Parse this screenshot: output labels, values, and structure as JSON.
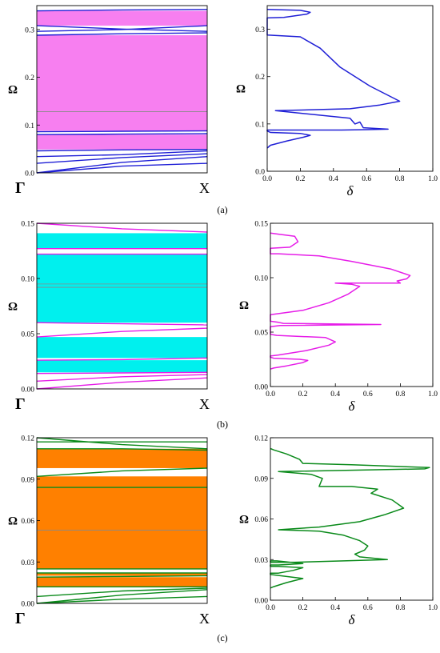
{
  "panels": [
    {
      "label": "(a)",
      "color": "#1f1fd6",
      "band_fill": "#f77ff0",
      "band_structure": {
        "type": "line",
        "ylabel": "Ω",
        "xticks": [
          "Γ",
          "X"
        ],
        "ylim": [
          0,
          0.35
        ],
        "yticks": [
          0.0,
          0.1,
          0.2,
          0.3
        ],
        "ytick_labels": [
          "0.0",
          "0.1",
          "0.2",
          "0.3"
        ],
        "gaps": [
          [
            0.049,
            0.08
          ],
          [
            0.088,
            0.288
          ],
          [
            0.308,
            0.339
          ]
        ],
        "flat_lines": [
          0.128
        ],
        "bands": [
          {
            "x": [
              0,
              0.5,
              1
            ],
            "y": [
              0.0,
              0.014,
              0.02
            ]
          },
          {
            "x": [
              0,
              0.5,
              1
            ],
            "y": [
              0.0,
              0.022,
              0.034
            ]
          },
          {
            "x": [
              0,
              0.5,
              1
            ],
            "y": [
              0.02,
              0.032,
              0.04
            ]
          },
          {
            "x": [
              0,
              0.5,
              1
            ],
            "y": [
              0.034,
              0.038,
              0.046
            ]
          },
          {
            "x": [
              0,
              0.5,
              1
            ],
            "y": [
              0.046,
              0.048,
              0.049
            ]
          },
          {
            "x": [
              0,
              0.5,
              1
            ],
            "y": [
              0.08,
              0.081,
              0.082
            ]
          },
          {
            "x": [
              0,
              0.5,
              1
            ],
            "y": [
              0.086,
              0.087,
              0.088
            ]
          },
          {
            "x": [
              0,
              0.5,
              1
            ],
            "y": [
              0.288,
              0.291,
              0.293
            ]
          },
          {
            "x": [
              0,
              0.5,
              1
            ],
            "y": [
              0.296,
              0.3,
              0.308
            ]
          },
          {
            "x": [
              0,
              0.5,
              1
            ],
            "y": [
              0.308,
              0.301,
              0.296
            ]
          },
          {
            "x": [
              0,
              0.5,
              1
            ],
            "y": [
              0.339,
              0.341,
              0.342
            ]
          }
        ]
      },
      "transmission": {
        "type": "line",
        "xlabel": "δ",
        "ylabel": "Ω",
        "xlim": [
          0,
          1.0
        ],
        "ylim": [
          0,
          0.35
        ],
        "xticks": [
          0,
          0.2,
          0.4,
          0.6,
          0.8,
          1.0
        ],
        "xtick_labels": [
          "0.0",
          "0.2",
          "0.4",
          "0.6",
          "0.8",
          "1.0"
        ],
        "yticks": [
          0.0,
          0.1,
          0.2,
          0.3
        ],
        "ytick_labels": [
          "0.0",
          "0.1",
          "0.2",
          "0.3"
        ],
        "x": [
          0.0,
          0.02,
          0.12,
          0.22,
          0.26,
          0.2,
          0.02,
          0.0,
          0.0,
          0.45,
          0.6,
          0.73,
          0.58,
          0.56,
          0.53,
          0.5,
          0.05,
          0.5,
          0.68,
          0.8,
          0.62,
          0.44,
          0.32,
          0.2,
          0.0,
          0.0,
          0.1,
          0.24,
          0.26,
          0.2,
          0.0
        ],
        "y": [
          0.049,
          0.055,
          0.064,
          0.072,
          0.076,
          0.08,
          0.082,
          0.085,
          0.087,
          0.087,
          0.088,
          0.089,
          0.092,
          0.104,
          0.1,
          0.112,
          0.128,
          0.132,
          0.14,
          0.148,
          0.18,
          0.22,
          0.26,
          0.284,
          0.288,
          0.324,
          0.325,
          0.332,
          0.336,
          0.34,
          0.342
        ]
      }
    },
    {
      "label": "(b)",
      "color": "#e61ee8",
      "band_fill": "#00f0ee",
      "band_structure": {
        "type": "line",
        "ylabel": "Ω",
        "xticks": [
          "Γ",
          "X"
        ],
        "ylim": [
          0,
          0.15
        ],
        "yticks": [
          0.0,
          0.05,
          0.1,
          0.15
        ],
        "ytick_labels": [
          "0.00",
          "0.05",
          "0.10",
          "0.15"
        ],
        "gaps": [
          [
            0.015,
            0.026
          ],
          [
            0.028,
            0.047
          ],
          [
            0.06,
            0.122
          ],
          [
            0.127,
            0.141
          ]
        ],
        "flat_lines": [
          0.092,
          0.095
        ],
        "bands": [
          {
            "x": [
              0,
              0.5,
              1
            ],
            "y": [
              0.0,
              0.006,
              0.01
            ]
          },
          {
            "x": [
              0,
              0.5,
              1
            ],
            "y": [
              0.007,
              0.011,
              0.013
            ]
          },
          {
            "x": [
              0,
              0.5,
              1
            ],
            "y": [
              0.014,
              0.0145,
              0.015
            ]
          },
          {
            "x": [
              0,
              0.5,
              1
            ],
            "y": [
              0.026,
              0.0265,
              0.028
            ]
          },
          {
            "x": [
              0,
              0.5,
              1
            ],
            "y": [
              0.047,
              0.052,
              0.055
            ]
          },
          {
            "x": [
              0,
              0.5,
              1
            ],
            "y": [
              0.06,
              0.059,
              0.058
            ]
          },
          {
            "x": [
              0,
              0.5,
              1
            ],
            "y": [
              0.122,
              0.122,
              0.122
            ]
          },
          {
            "x": [
              0,
              0.5,
              1
            ],
            "y": [
              0.127,
              0.127,
              0.127
            ]
          },
          {
            "x": [
              0,
              0.5,
              1
            ],
            "y": [
              0.15,
              0.145,
              0.142
            ]
          }
        ]
      },
      "transmission": {
        "type": "line",
        "xlabel": "δ",
        "ylabel": "Ω",
        "xlim": [
          0,
          1.0
        ],
        "ylim": [
          0,
          0.15
        ],
        "xticks": [
          0,
          0.2,
          0.4,
          0.6,
          0.8,
          1.0
        ],
        "xtick_labels": [
          "0.0",
          "0.2",
          "0.4",
          "0.6",
          "0.8",
          "1.0"
        ],
        "yticks": [
          0.0,
          0.05,
          0.1,
          0.15
        ],
        "ytick_labels": [
          "0.00",
          "0.05",
          "0.10",
          "0.15"
        ],
        "x": [
          0.0,
          0.02,
          0.1,
          0.2,
          0.23,
          0.18,
          0.02,
          0.0,
          0.0,
          0.05,
          0.22,
          0.36,
          0.4,
          0.34,
          0.04,
          0.0,
          0.0,
          0.06,
          0.68,
          0.08,
          0.05,
          0.0,
          0.0,
          0.2,
          0.36,
          0.48,
          0.55,
          0.5,
          0.4,
          0.8,
          0.78,
          0.84,
          0.86,
          0.74,
          0.5,
          0.3,
          0.05,
          0.0,
          0.0,
          0.12,
          0.17,
          0.15,
          0.05,
          0.0
        ],
        "y": [
          0.016,
          0.017,
          0.019,
          0.022,
          0.024,
          0.025,
          0.026,
          0.027,
          0.028,
          0.029,
          0.033,
          0.038,
          0.041,
          0.045,
          0.047,
          0.048,
          0.055,
          0.056,
          0.057,
          0.058,
          0.059,
          0.06,
          0.066,
          0.07,
          0.077,
          0.085,
          0.092,
          0.094,
          0.095,
          0.095,
          0.097,
          0.099,
          0.102,
          0.108,
          0.115,
          0.12,
          0.122,
          0.122,
          0.127,
          0.128,
          0.133,
          0.138,
          0.14,
          0.141
        ]
      }
    },
    {
      "label": "(c)",
      "color": "#0a8a1a",
      "band_fill": "#ff8000",
      "band_structure": {
        "type": "line",
        "ylabel": "Ω",
        "xticks": [
          "Γ",
          "X"
        ],
        "ylim": [
          0,
          0.12
        ],
        "yticks": [
          0.0,
          0.03,
          0.06,
          0.09,
          0.12
        ],
        "ytick_labels": [
          "0.00",
          "0.03",
          "0.06",
          "0.09",
          "0.12"
        ],
        "gaps": [
          [
            0.012,
            0.019
          ],
          [
            0.02,
            0.022
          ],
          [
            0.025,
            0.092
          ],
          [
            0.098,
            0.112
          ]
        ],
        "flat_lines": [
          0.053
        ],
        "bands": [
          {
            "x": [
              0,
              0.5,
              1
            ],
            "y": [
              0.0,
              0.003,
              0.005
            ]
          },
          {
            "x": [
              0,
              0.5,
              1
            ],
            "y": [
              0.0,
              0.006,
              0.01
            ]
          },
          {
            "x": [
              0,
              0.5,
              1
            ],
            "y": [
              0.005,
              0.009,
              0.011
            ]
          },
          {
            "x": [
              0,
              0.5,
              1
            ],
            "y": [
              0.012,
              0.012,
              0.012
            ]
          },
          {
            "x": [
              0,
              0.5,
              1
            ],
            "y": [
              0.019,
              0.0195,
              0.02
            ]
          },
          {
            "x": [
              0,
              0.5,
              1
            ],
            "y": [
              0.022,
              0.022,
              0.022
            ]
          },
          {
            "x": [
              0,
              0.5,
              1
            ],
            "y": [
              0.025,
              0.025,
              0.025
            ]
          },
          {
            "x": [
              0,
              0.5,
              1
            ],
            "y": [
              0.084,
              0.084,
              0.084
            ]
          },
          {
            "x": [
              0,
              0.5,
              1
            ],
            "y": [
              0.092,
              0.096,
              0.098
            ]
          },
          {
            "x": [
              0,
              0.5,
              1
            ],
            "y": [
              0.112,
              0.112,
              0.111
            ]
          },
          {
            "x": [
              0,
              0.5,
              1
            ],
            "y": [
              0.117,
              0.117,
              0.117
            ]
          },
          {
            "x": [
              0,
              0.5,
              1
            ],
            "y": [
              0.12,
              0.115,
              0.112
            ]
          }
        ]
      },
      "transmission": {
        "type": "line",
        "xlabel": "δ",
        "ylabel": "Ω",
        "xlim": [
          0,
          1.0
        ],
        "ylim": [
          0,
          0.12
        ],
        "xticks": [
          0,
          0.2,
          0.4,
          0.6,
          0.8,
          1.0
        ],
        "xtick_labels": [
          "0.0",
          "0.2",
          "0.4",
          "0.6",
          "0.8",
          "1.0"
        ],
        "yticks": [
          0.0,
          0.03,
          0.06,
          0.09,
          0.12
        ],
        "ytick_labels": [
          "0.00",
          "0.03",
          "0.06",
          "0.09",
          "0.12"
        ],
        "x": [
          0.0,
          0.02,
          0.1,
          0.2,
          0.0,
          0.0,
          0.05,
          0.14,
          0.2,
          0.05,
          0.0,
          0.0,
          0.05,
          0.2,
          0.04,
          0.0,
          0.0,
          0.15,
          0.45,
          0.72,
          0.55,
          0.52,
          0.58,
          0.6,
          0.55,
          0.45,
          0.3,
          0.05,
          0.3,
          0.55,
          0.7,
          0.82,
          0.75,
          0.62,
          0.66,
          0.5,
          0.3,
          0.32,
          0.25,
          0.05,
          0.95,
          0.98,
          0.5,
          0.2,
          0.18,
          0.1,
          0.02,
          0.0
        ],
        "y": [
          0.009,
          0.01,
          0.013,
          0.016,
          0.019,
          0.02,
          0.02,
          0.022,
          0.024,
          0.025,
          0.025,
          0.026,
          0.026,
          0.027,
          0.029,
          0.029,
          0.028,
          0.028,
          0.029,
          0.03,
          0.032,
          0.034,
          0.037,
          0.04,
          0.044,
          0.048,
          0.051,
          0.052,
          0.054,
          0.058,
          0.063,
          0.068,
          0.074,
          0.079,
          0.082,
          0.084,
          0.084,
          0.09,
          0.093,
          0.095,
          0.097,
          0.098,
          0.1,
          0.101,
          0.104,
          0.108,
          0.111,
          0.112
        ]
      }
    }
  ]
}
